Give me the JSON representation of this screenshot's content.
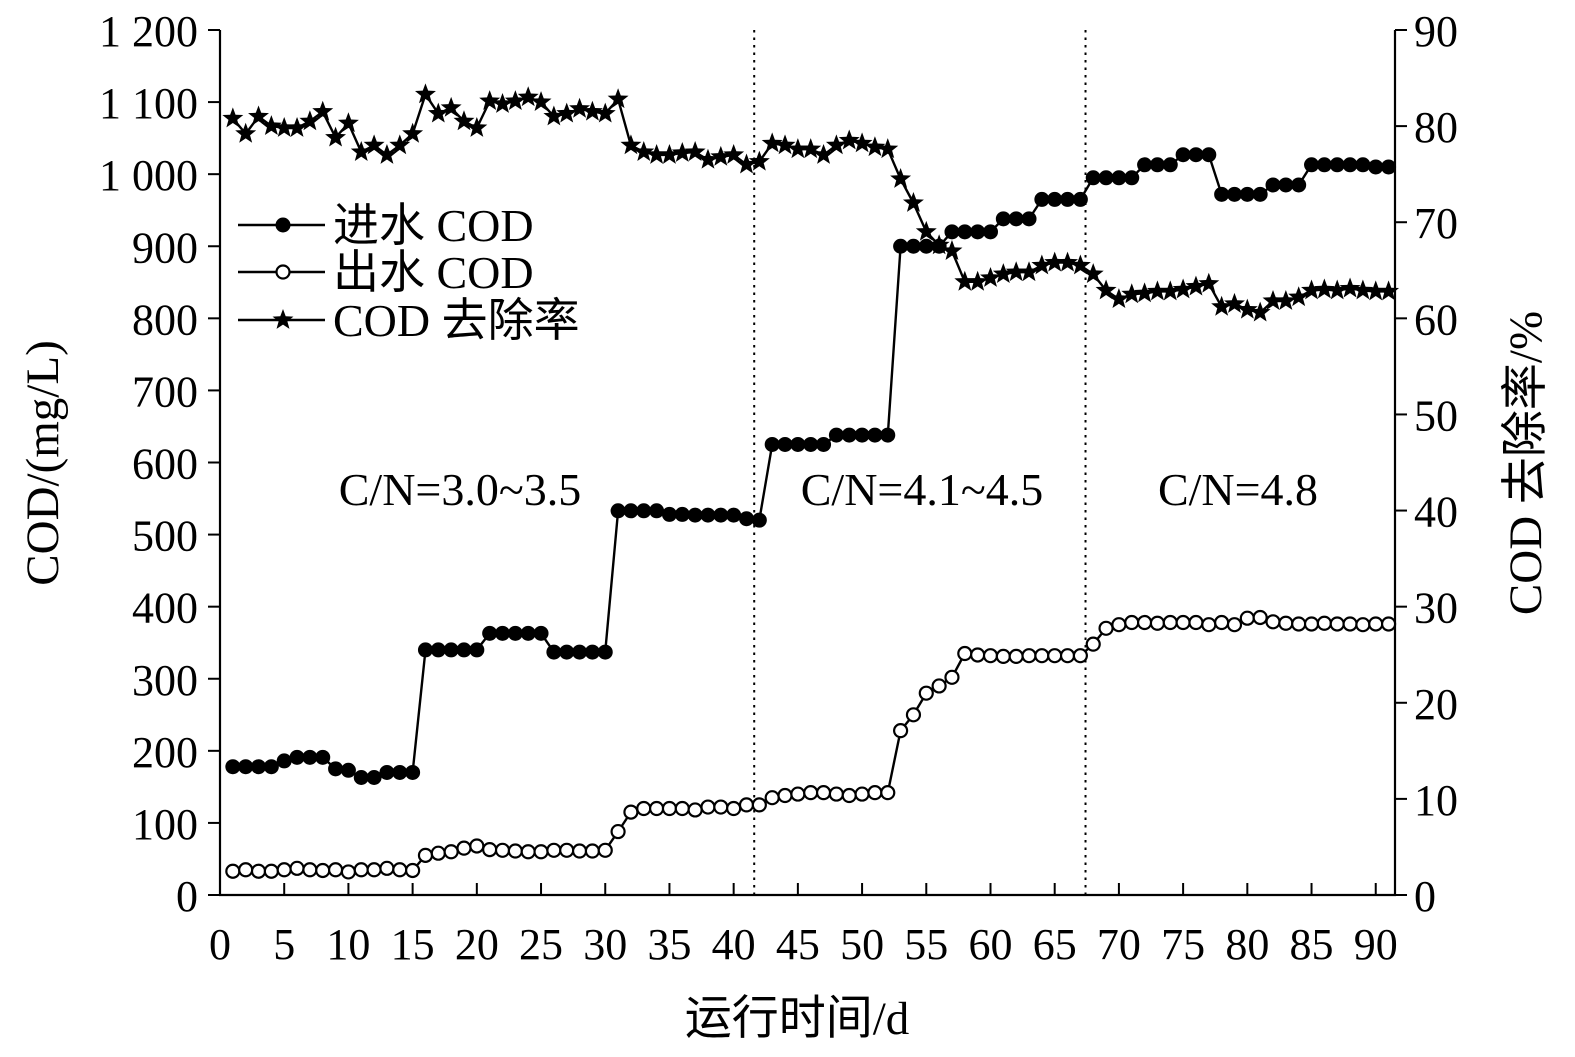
{
  "colors": {
    "ink": "#000000",
    "background": "#ffffff"
  },
  "chart_data": {
    "type": "line",
    "xlabel": "运行时间/d",
    "ylabel": "COD/(mg/L)",
    "y2label": "COD 去除率/%",
    "xlim": [
      0,
      91.5
    ],
    "ylim": [
      0,
      1200
    ],
    "y2lim": [
      0,
      90
    ],
    "xticks": [
      "0",
      "5",
      "10",
      "15",
      "20",
      "25",
      "30",
      "35",
      "40",
      "45",
      "50",
      "55",
      "60",
      "65",
      "70",
      "75",
      "80",
      "85",
      "90"
    ],
    "yticks": [
      "0",
      "100",
      "200",
      "300",
      "400",
      "500",
      "600",
      "700",
      "800",
      "900",
      "1 000",
      "1 100",
      "1 200"
    ],
    "y2ticks": [
      "0",
      "10",
      "20",
      "30",
      "40",
      "50",
      "60",
      "70",
      "80",
      "90"
    ],
    "grid": false,
    "legend_position": "upper-left",
    "phase_boundaries": [
      41.6,
      67.4
    ],
    "phase_labels": [
      "C/N=3.0~3.5",
      "C/N=4.1~4.5",
      "C/N=4.8"
    ],
    "x": [
      1,
      2,
      3,
      4,
      5,
      6,
      7,
      8,
      9,
      10,
      11,
      12,
      13,
      14,
      15,
      16,
      17,
      18,
      19,
      20,
      21,
      22,
      23,
      24,
      25,
      26,
      27,
      28,
      29,
      30,
      31,
      32,
      33,
      34,
      35,
      36,
      37,
      38,
      39,
      40,
      41,
      42,
      43,
      44,
      45,
      46,
      47,
      48,
      49,
      50,
      51,
      52,
      53,
      54,
      55,
      56,
      57,
      58,
      59,
      60,
      61,
      62,
      63,
      64,
      65,
      66,
      67,
      68,
      69,
      70,
      71,
      72,
      73,
      74,
      75,
      76,
      77,
      78,
      79,
      80,
      81,
      82,
      83,
      84,
      85,
      86,
      87,
      88,
      89,
      90,
      91
    ],
    "series": [
      {
        "name": "进水 COD",
        "axis": "left",
        "marker": "filled-circle",
        "values": [
          178,
          178,
          178,
          178,
          186,
          191,
          191,
          191,
          175,
          173,
          163,
          163,
          170,
          170,
          170,
          340,
          340,
          340,
          340,
          340,
          363,
          363,
          363,
          363,
          363,
          337,
          337,
          337,
          337,
          337,
          533,
          533,
          533,
          533,
          528,
          528,
          527,
          527,
          527,
          527,
          522,
          520,
          625,
          625,
          625,
          625,
          625,
          638,
          638,
          638,
          638,
          638,
          900,
          900,
          900,
          900,
          920,
          920,
          920,
          920,
          938,
          938,
          938,
          965,
          965,
          965,
          965,
          995,
          995,
          995,
          995,
          1013,
          1013,
          1013,
          1027,
          1027,
          1027,
          972,
          972,
          972,
          972,
          985,
          985,
          985,
          1013,
          1013,
          1013,
          1013,
          1013,
          1010,
          1010
        ]
      },
      {
        "name": "出水 COD",
        "axis": "left",
        "marker": "open-circle",
        "values": [
          33,
          35,
          33,
          33,
          35,
          37,
          35,
          34,
          35,
          32,
          35,
          35,
          37,
          35,
          34,
          55,
          58,
          60,
          65,
          68,
          63,
          62,
          61,
          60,
          60,
          62,
          62,
          61,
          61,
          62,
          88,
          115,
          120,
          120,
          120,
          120,
          118,
          122,
          122,
          120,
          125,
          125,
          135,
          138,
          140,
          142,
          142,
          140,
          138,
          140,
          142,
          142,
          228,
          250,
          280,
          290,
          302,
          335,
          333,
          332,
          331,
          331,
          332,
          332,
          332,
          332,
          332,
          348,
          370,
          375,
          378,
          378,
          377,
          378,
          378,
          378,
          375,
          378,
          375,
          384,
          385,
          379,
          377,
          376,
          376,
          377,
          376,
          376,
          375,
          376,
          376
        ]
      },
      {
        "name": "COD 去除率",
        "axis": "right",
        "marker": "star",
        "values": [
          80.8,
          79.2,
          81.0,
          80.0,
          79.8,
          79.8,
          80.5,
          81.5,
          78.8,
          80.3,
          77.3,
          78.0,
          77.0,
          78.0,
          79.2,
          83.3,
          81.3,
          81.9,
          80.5,
          79.8,
          82.6,
          82.3,
          82.6,
          83.0,
          82.5,
          81.0,
          81.3,
          81.8,
          81.5,
          81.3,
          82.8,
          78.0,
          77.3,
          77.0,
          77.0,
          77.2,
          77.3,
          76.5,
          76.8,
          77.0,
          76.0,
          76.3,
          78.2,
          78.0,
          77.6,
          77.6,
          77.0,
          78.0,
          78.5,
          78.2,
          77.8,
          77.6,
          74.5,
          72.0,
          69.0,
          67.6,
          67.0,
          63.8,
          63.8,
          64.2,
          64.6,
          64.8,
          64.8,
          65.5,
          65.8,
          65.8,
          65.5,
          64.6,
          62.9,
          62.0,
          62.5,
          62.6,
          62.8,
          62.8,
          63.0,
          63.3,
          63.6,
          61.2,
          61.5,
          60.9,
          60.6,
          61.8,
          61.8,
          62.2,
          62.9,
          63.0,
          62.9,
          63.1,
          62.9,
          62.8,
          62.8
        ]
      }
    ]
  }
}
